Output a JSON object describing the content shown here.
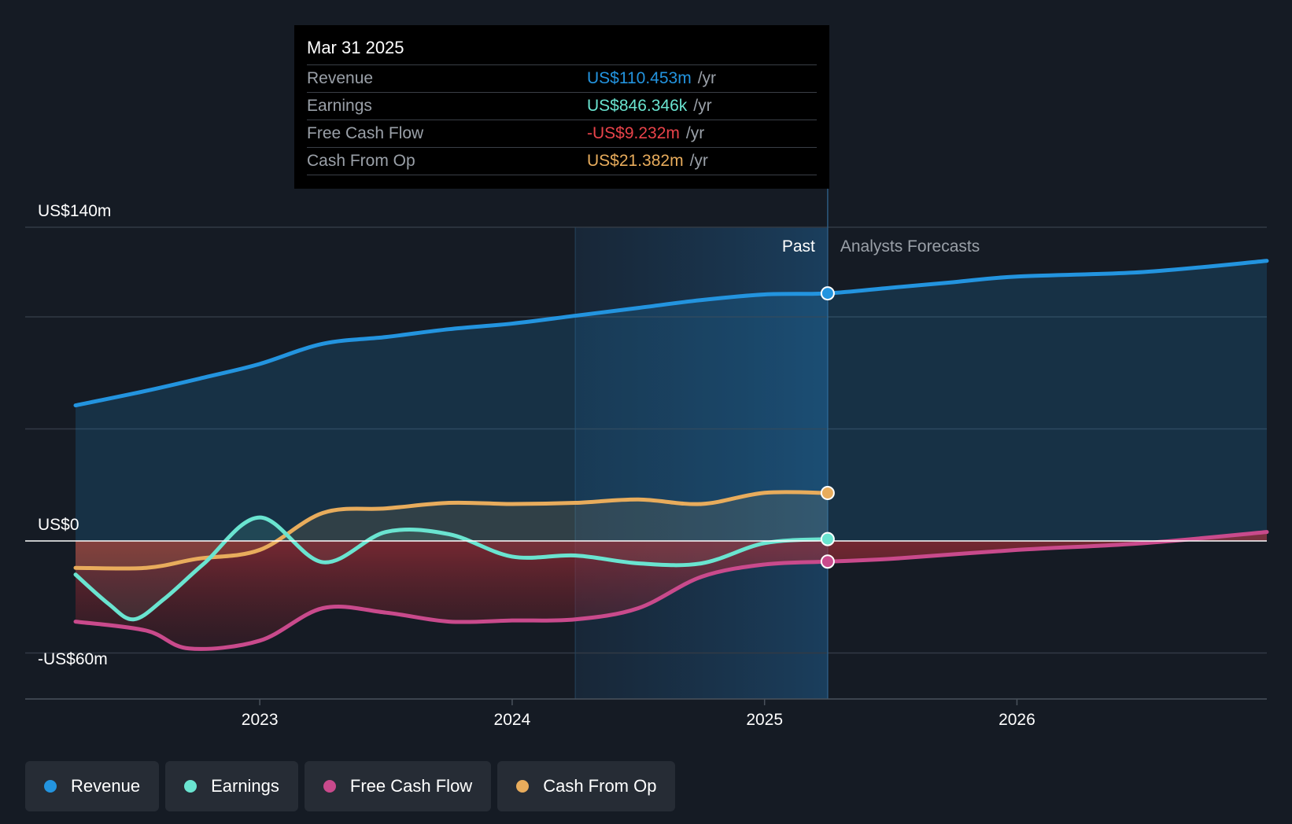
{
  "chart_data": {
    "type": "line",
    "title": "",
    "xlabel": "",
    "ylabel": "",
    "ylim": [
      -60,
      140
    ],
    "xlim": [
      2022.27,
      2026.99
    ],
    "divider_x": 2025.25,
    "highlight_start_x": 2024.25,
    "y_axis_labels": [
      {
        "value": 140,
        "label": "US$140m"
      },
      {
        "value": 0,
        "label": "US$0"
      },
      {
        "value": -60,
        "label": "-US$60m"
      }
    ],
    "gridlines": [
      140,
      100,
      50,
      -50
    ],
    "x_ticks": [
      {
        "value": 2023.0,
        "label": "2023"
      },
      {
        "value": 2024.0,
        "label": "2024"
      },
      {
        "value": 2025.0,
        "label": "2025"
      },
      {
        "value": 2026.0,
        "label": "2026"
      }
    ],
    "region_labels": {
      "past": "Past",
      "forecast": "Analysts Forecasts"
    },
    "series": [
      {
        "name": "Revenue",
        "color": "#2394df",
        "points": [
          [
            2022.27,
            60.5
          ],
          [
            2022.55,
            67
          ],
          [
            2022.8,
            73.5
          ],
          [
            2023.0,
            79
          ],
          [
            2023.25,
            88
          ],
          [
            2023.5,
            91
          ],
          [
            2023.75,
            94.5
          ],
          [
            2024.0,
            97
          ],
          [
            2024.25,
            100.5
          ],
          [
            2024.5,
            104
          ],
          [
            2024.75,
            107.5
          ],
          [
            2025.0,
            110
          ],
          [
            2025.25,
            110.5
          ]
        ],
        "forecast": [
          [
            2025.25,
            110.5
          ],
          [
            2025.5,
            113
          ],
          [
            2025.75,
            115.5
          ],
          [
            2026.0,
            118
          ],
          [
            2026.5,
            120
          ],
          [
            2026.99,
            125
          ]
        ]
      },
      {
        "name": "Earnings",
        "color": "#6ae4d0",
        "points": [
          [
            2022.27,
            -15
          ],
          [
            2022.4,
            -28
          ],
          [
            2022.5,
            -35
          ],
          [
            2022.62,
            -26
          ],
          [
            2022.78,
            -10
          ],
          [
            2023.0,
            10.5
          ],
          [
            2023.25,
            -9.5
          ],
          [
            2023.5,
            4
          ],
          [
            2023.75,
            3
          ],
          [
            2024.0,
            -7
          ],
          [
            2024.25,
            -6.5
          ],
          [
            2024.5,
            -10
          ],
          [
            2024.75,
            -10
          ],
          [
            2025.0,
            -1
          ],
          [
            2025.25,
            0.85
          ]
        ]
      },
      {
        "name": "Free Cash Flow",
        "color": "#c94a8c",
        "points": [
          [
            2022.27,
            -36
          ],
          [
            2022.55,
            -40
          ],
          [
            2022.72,
            -48
          ],
          [
            2023.0,
            -44.5
          ],
          [
            2023.25,
            -30
          ],
          [
            2023.5,
            -32
          ],
          [
            2023.75,
            -36
          ],
          [
            2024.0,
            -35.5
          ],
          [
            2024.25,
            -35
          ],
          [
            2024.5,
            -30
          ],
          [
            2024.75,
            -16
          ],
          [
            2025.0,
            -10.5
          ],
          [
            2025.25,
            -9.2
          ]
        ],
        "forecast": [
          [
            2025.25,
            -9.2
          ],
          [
            2025.5,
            -8
          ],
          [
            2026.0,
            -4
          ],
          [
            2026.5,
            -1
          ],
          [
            2026.99,
            4
          ]
        ]
      },
      {
        "name": "Cash From Op",
        "color": "#e8ac5c",
        "points": [
          [
            2022.27,
            -12
          ],
          [
            2022.55,
            -12
          ],
          [
            2022.75,
            -8
          ],
          [
            2023.0,
            -4
          ],
          [
            2023.25,
            12.5
          ],
          [
            2023.5,
            14.5
          ],
          [
            2023.75,
            17
          ],
          [
            2024.0,
            16.5
          ],
          [
            2024.25,
            17
          ],
          [
            2024.5,
            18.5
          ],
          [
            2024.75,
            16.5
          ],
          [
            2025.0,
            21.5
          ],
          [
            2025.25,
            21.4
          ]
        ]
      }
    ]
  },
  "tooltip": {
    "date": "Mar 31 2025",
    "rows": [
      {
        "label": "Revenue",
        "value": "US$110.453m",
        "unit": "/yr",
        "color": "#2394df"
      },
      {
        "label": "Earnings",
        "value": "US$846.346k",
        "unit": "/yr",
        "color": "#6ae4d0"
      },
      {
        "label": "Free Cash Flow",
        "value": "-US$9.232m",
        "unit": "/yr",
        "color": "#e8434a"
      },
      {
        "label": "Cash From Op",
        "value": "US$21.382m",
        "unit": "/yr",
        "color": "#e8ac5c"
      }
    ]
  },
  "legend": [
    {
      "label": "Revenue",
      "color": "#2394df"
    },
    {
      "label": "Earnings",
      "color": "#6ae4d0"
    },
    {
      "label": "Free Cash Flow",
      "color": "#c94a8c"
    },
    {
      "label": "Cash From Op",
      "color": "#e8ac5c"
    }
  ]
}
